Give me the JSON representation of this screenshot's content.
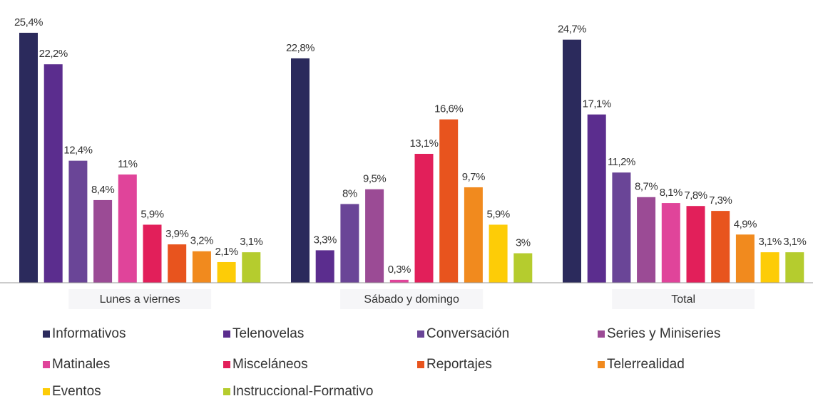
{
  "chart_data": {
    "type": "bar",
    "categories": [
      "Lunes a viernes",
      "Sábado y domingo",
      "Total"
    ],
    "series": [
      {
        "name": "Informativos",
        "color": "#2b2a5c",
        "values": [
          25.4,
          22.8,
          24.7
        ],
        "value_labels": [
          "25,4%",
          "22,8%",
          "24,7%"
        ]
      },
      {
        "name": "Telenovelas",
        "color": "#5b2d8e",
        "values": [
          22.2,
          3.3,
          17.1
        ],
        "value_labels": [
          "22,2%",
          "3,3%",
          "17,1%"
        ]
      },
      {
        "name": "Conversación",
        "color": "#6a4597",
        "values": [
          12.4,
          8,
          11.2
        ],
        "value_labels": [
          "12,4%",
          "8%",
          "11,2%"
        ]
      },
      {
        "name": "Series y Miniseries",
        "color": "#9b4b95",
        "values": [
          8.4,
          9.5,
          8.7
        ],
        "value_labels": [
          "8,4%",
          "9,5%",
          "8,7%"
        ]
      },
      {
        "name": "Matinales",
        "color": "#e0449a",
        "values": [
          11,
          0.3,
          8.1
        ],
        "value_labels": [
          "11%",
          "0,3%",
          "8,1%"
        ]
      },
      {
        "name": "Misceláneos",
        "color": "#e21f5a",
        "values": [
          5.9,
          13.1,
          7.8
        ],
        "value_labels": [
          "5,9%",
          "13,1%",
          "7,8%"
        ]
      },
      {
        "name": "Reportajes",
        "color": "#e8541e",
        "values": [
          3.9,
          16.6,
          7.3
        ],
        "value_labels": [
          "3,9%",
          "16,6%",
          "7,3%"
        ]
      },
      {
        "name": "Telerrealidad",
        "color": "#f18a1e",
        "values": [
          3.2,
          9.7,
          4.9
        ],
        "value_labels": [
          "3,2%",
          "9,7%",
          "4,9%"
        ]
      },
      {
        "name": "Eventos",
        "color": "#fdcc07",
        "values": [
          2.1,
          5.9,
          3.1
        ],
        "value_labels": [
          "2,1%",
          "5,9%",
          "3,1%"
        ]
      },
      {
        "name": "Instruccional-Formativo",
        "color": "#b5cc2e",
        "values": [
          3.1,
          3,
          3.1
        ],
        "value_labels": [
          "3,1%",
          "3%",
          "3,1%"
        ]
      }
    ]
  }
}
